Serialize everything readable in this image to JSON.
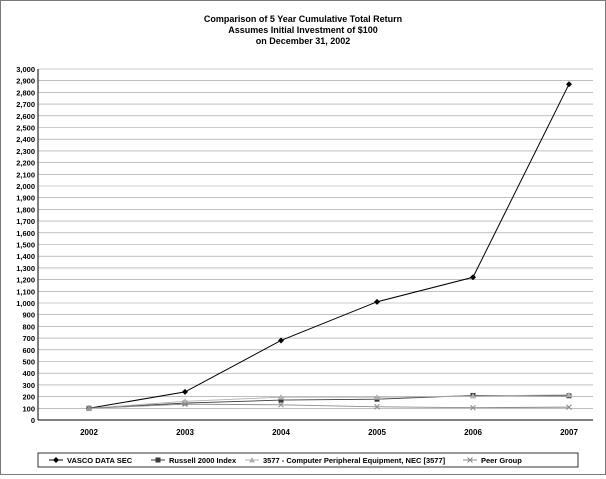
{
  "chart_data": {
    "type": "line",
    "title": [
      "Comparison of 5 Year Cumulative Total Return",
      "Assumes Initial Investment of $100",
      "on December 31, 2002"
    ],
    "categories": [
      "2002",
      "2003",
      "2004",
      "2005",
      "2006",
      "2007"
    ],
    "ylim": [
      0,
      3000
    ],
    "yticks": [
      0,
      100,
      200,
      300,
      400,
      500,
      600,
      700,
      800,
      900,
      1000,
      1100,
      1200,
      1300,
      1400,
      1500,
      1600,
      1700,
      1800,
      1900,
      2000,
      2100,
      2200,
      2300,
      2400,
      2500,
      2600,
      2700,
      2800,
      2900,
      3000
    ],
    "ytick_labels": [
      "0",
      "100",
      "200",
      "300",
      "400",
      "500",
      "600",
      "700",
      "800",
      "900",
      "1,000",
      "1,100",
      "1,200",
      "1,300",
      "1,400",
      "1,500",
      "1,600",
      "1,700",
      "1,800",
      "1,900",
      "2,000",
      "2,100",
      "2,200",
      "2,300",
      "2,400",
      "2,500",
      "2,600",
      "2,700",
      "2,800",
      "2,900",
      "3,000"
    ],
    "grid": "horizontal",
    "legend_position": "bottom",
    "series": [
      {
        "name": "VASCO DATA SEC",
        "x": [
          2002,
          2003,
          2004,
          2005,
          2006,
          2007
        ],
        "values": [
          100,
          240,
          680,
          1010,
          1220,
          2870
        ],
        "color": "#000000",
        "marker": "diamond"
      },
      {
        "name": "Russell 2000 Index",
        "x": [
          2002,
          2003,
          2004,
          2005,
          2006,
          2007
        ],
        "values": [
          100,
          145,
          170,
          178,
          210,
          207
        ],
        "color": "#3a3a3a",
        "marker": "square"
      },
      {
        "name": "3577 - Computer Peripheral Equipment, NEC [3577]",
        "x": [
          2002,
          2003,
          2004,
          2005,
          2006,
          2007
        ],
        "values": [
          100,
          160,
          195,
          195,
          205,
          215
        ],
        "color": "#b0b0b0",
        "marker": "triangle"
      },
      {
        "name": "Peer Group",
        "x": [
          2002,
          2003,
          2004,
          2005,
          2006,
          2007
        ],
        "values": [
          100,
          135,
          130,
          113,
          105,
          110
        ],
        "color": "#8a8a8a",
        "marker": "x"
      }
    ]
  }
}
